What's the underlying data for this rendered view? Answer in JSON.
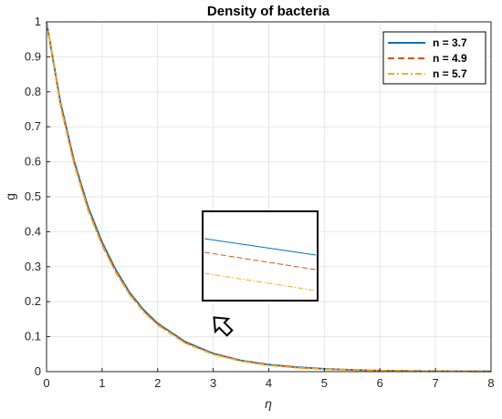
{
  "chart_data": {
    "type": "line",
    "title": "Density of bacteria",
    "xlabel": "η",
    "ylabel": "g",
    "xlim": [
      0,
      8
    ],
    "ylim": [
      0,
      1
    ],
    "xticks": [
      0,
      1,
      2,
      3,
      4,
      5,
      6,
      7,
      8
    ],
    "yticks": [
      0,
      0.1,
      0.2,
      0.3,
      0.4,
      0.5,
      0.6,
      0.7,
      0.8,
      0.9,
      1
    ],
    "grid": true,
    "legend_position": "top-right",
    "x": [
      0,
      0.25,
      0.5,
      0.75,
      1,
      1.25,
      1.5,
      1.75,
      2,
      2.5,
      3,
      3.5,
      4,
      4.5,
      5,
      5.5,
      6,
      6.5,
      7,
      7.5,
      8
    ],
    "series": [
      {
        "name": "n = 3.7",
        "color": "#0072BD",
        "style": "solid",
        "values": [
          1.0,
          0.77,
          0.6,
          0.47,
          0.37,
          0.29,
          0.225,
          0.176,
          0.138,
          0.085,
          0.052,
          0.032,
          0.02,
          0.013,
          0.008,
          0.005,
          0.003,
          0.002,
          0.0015,
          0.001,
          0.0008
        ]
      },
      {
        "name": "n = 4.9",
        "color": "#D95319",
        "style": "dashed",
        "values": [
          1.0,
          0.765,
          0.595,
          0.465,
          0.365,
          0.286,
          0.222,
          0.173,
          0.136,
          0.083,
          0.051,
          0.031,
          0.019,
          0.012,
          0.0075,
          0.0048,
          0.003,
          0.002,
          0.0014,
          0.001,
          0.0007
        ]
      },
      {
        "name": "n = 5.7",
        "color": "#EDB120",
        "style": "dashdot",
        "values": [
          1.0,
          0.76,
          0.59,
          0.46,
          0.36,
          0.282,
          0.219,
          0.17,
          0.133,
          0.081,
          0.049,
          0.03,
          0.018,
          0.011,
          0.007,
          0.0045,
          0.0028,
          0.0018,
          0.0013,
          0.0009,
          0.0006
        ]
      }
    ]
  }
}
